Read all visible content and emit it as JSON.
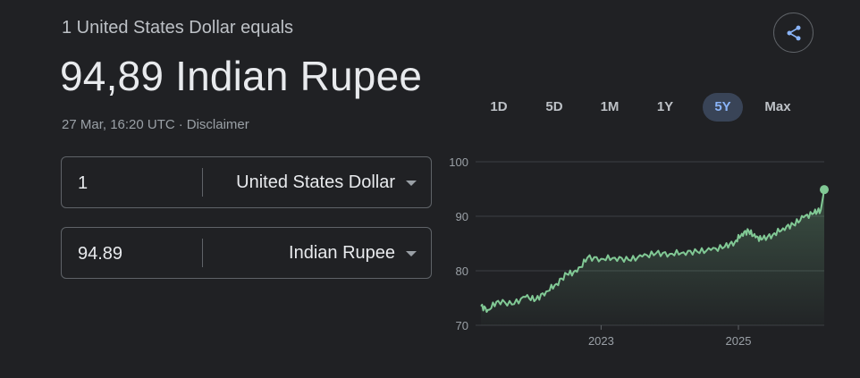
{
  "header": {
    "line": "1 United States Dollar equals",
    "value": "94,89 Indian Rupee",
    "timestamp": "27 Mar, 16:20 UTC",
    "separator": "·",
    "disclaimer": "Disclaimer"
  },
  "converter": {
    "from": {
      "amount": "1",
      "currency": "United States Dollar"
    },
    "to": {
      "amount": "94.89",
      "currency": "Indian Rupee"
    }
  },
  "ranges": {
    "items": [
      "1D",
      "5D",
      "1M",
      "1Y",
      "5Y",
      "Max"
    ],
    "selected": "5Y"
  },
  "colors": {
    "background": "#202124",
    "line": "#81c995",
    "active_range_bg": "#394457",
    "active_range_text": "#8ab4f8"
  },
  "icons": {
    "share": "share-icon"
  },
  "chart_data": {
    "type": "area",
    "y_ticks": [
      "100",
      "90",
      "80",
      "70"
    ],
    "ylim": [
      70,
      100
    ],
    "x_ticks": [
      "2023",
      "2025"
    ],
    "xlim": [
      2021.25,
      2026.25
    ],
    "grid": true,
    "series": [
      {
        "x": [
          2021.25,
          2021.35,
          2021.5,
          2021.7,
          2021.9,
          2022.05,
          2022.2,
          2022.35,
          2022.5,
          2022.65,
          2022.8,
          2023.0,
          2023.2,
          2023.4,
          2023.6,
          2023.8,
          2024.0,
          2024.2,
          2024.4,
          2024.6,
          2024.8,
          2024.95,
          2025.05,
          2025.15,
          2025.25,
          2025.35,
          2025.5,
          2025.65,
          2025.8,
          2025.95,
          2026.1,
          2026.2,
          2026.25
        ],
        "y": [
          73.5,
          72.8,
          74.5,
          73.8,
          75.2,
          74.7,
          76.2,
          77.6,
          79.4,
          79.8,
          82.4,
          82.2,
          82.4,
          82.0,
          82.6,
          83.2,
          83.1,
          83.4,
          83.5,
          83.8,
          84.4,
          85.3,
          86.8,
          87.3,
          86.1,
          85.8,
          86.6,
          87.8,
          88.5,
          89.8,
          90.6,
          91.2,
          94.89
        ]
      }
    ]
  }
}
